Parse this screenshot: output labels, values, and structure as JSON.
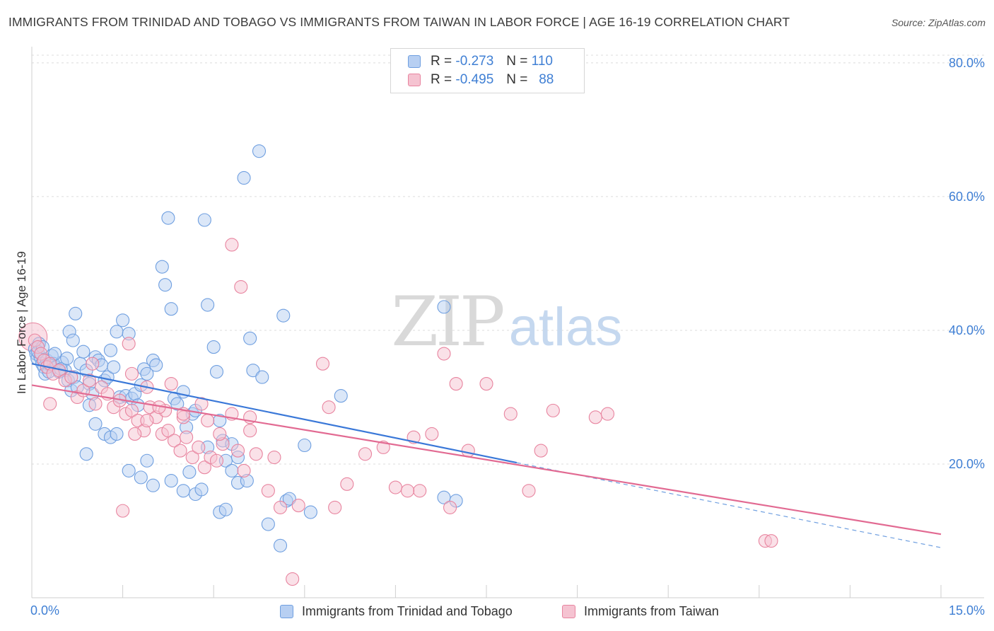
{
  "title": "IMMIGRANTS FROM TRINIDAD AND TOBAGO VS IMMIGRANTS FROM TAIWAN IN LABOR FORCE | AGE 16-19 CORRELATION CHART",
  "source": "Source: ZipAtlas.com",
  "watermark": {
    "zip": "ZIP",
    "atlas": "atlas"
  },
  "legend": {
    "rows": [
      {
        "r_label": "R =",
        "r_value": "-0.273",
        "n_label": "N =",
        "n_value": "110"
      },
      {
        "r_label": "R =",
        "r_value": "-0.495",
        "n_label": "N =",
        "n_value": "88"
      }
    ]
  },
  "chart_data": {
    "type": "scatter",
    "title": "IMMIGRANTS FROM TRINIDAD AND TOBAGO VS IMMIGRANTS FROM TAIWAN IN LABOR FORCE | AGE 16-19 CORRELATION CHART",
    "xlabel": "",
    "ylabel": "In Labor Force | Age 16-19",
    "xlim": [
      0,
      15
    ],
    "ylim": [
      0,
      82
    ],
    "x_tick_labels": [
      "0.0%",
      "15.0%"
    ],
    "y_ticks": [
      20,
      40,
      60,
      80
    ],
    "y_tick_labels": [
      "20.0%",
      "40.0%",
      "60.0%",
      "80.0%"
    ],
    "grid": true,
    "legend_position": "top-center",
    "series": [
      {
        "name": "Immigrants from Trinidad and Tobago",
        "color": "#6f9fe0",
        "fill": "#b7cff2",
        "R": -0.273,
        "N": 110,
        "trend": {
          "x0": 0,
          "y0": 35.0,
          "x1": 8.0,
          "y1": 20.2,
          "dash_to_x": 15,
          "dash_to_y": 7.5
        },
        "points": [
          [
            0.05,
            37.2
          ],
          [
            0.07,
            36.5
          ],
          [
            0.09,
            35.8
          ],
          [
            0.12,
            38.0
          ],
          [
            0.14,
            36.0
          ],
          [
            0.17,
            35.0
          ],
          [
            0.2,
            34.5
          ],
          [
            0.22,
            33.5
          ],
          [
            0.25,
            35.5
          ],
          [
            0.3,
            34.8
          ],
          [
            0.33,
            36.2
          ],
          [
            0.36,
            35.0
          ],
          [
            0.4,
            34.5
          ],
          [
            0.45,
            33.8
          ],
          [
            0.5,
            35.2
          ],
          [
            0.55,
            34.0
          ],
          [
            0.6,
            32.5
          ],
          [
            0.65,
            31.0
          ],
          [
            0.7,
            33.0
          ],
          [
            0.75,
            31.5
          ],
          [
            0.8,
            35.0
          ],
          [
            0.85,
            36.8
          ],
          [
            0.9,
            34.0
          ],
          [
            0.95,
            32.0
          ],
          [
            1.0,
            30.5
          ],
          [
            1.05,
            36.0
          ],
          [
            1.1,
            35.5
          ],
          [
            1.15,
            34.8
          ],
          [
            1.2,
            32.5
          ],
          [
            1.25,
            33.0
          ],
          [
            0.72,
            42.5
          ],
          [
            0.62,
            39.8
          ],
          [
            0.68,
            38.5
          ],
          [
            1.5,
            41.5
          ],
          [
            1.4,
            39.8
          ],
          [
            1.6,
            39.5
          ],
          [
            1.3,
            37.0
          ],
          [
            1.35,
            34.5
          ],
          [
            1.45,
            30.0
          ],
          [
            1.55,
            30.2
          ],
          [
            1.65,
            29.8
          ],
          [
            1.7,
            30.5
          ],
          [
            1.8,
            31.8
          ],
          [
            1.85,
            34.2
          ],
          [
            1.9,
            33.5
          ],
          [
            2.0,
            35.5
          ],
          [
            2.05,
            34.8
          ],
          [
            2.15,
            49.5
          ],
          [
            2.2,
            46.8
          ],
          [
            2.25,
            56.8
          ],
          [
            2.3,
            43.2
          ],
          [
            2.35,
            29.8
          ],
          [
            2.4,
            29.0
          ],
          [
            2.5,
            30.8
          ],
          [
            2.55,
            25.5
          ],
          [
            2.65,
            27.5
          ],
          [
            2.7,
            28.0
          ],
          [
            2.85,
            56.5
          ],
          [
            2.9,
            43.8
          ],
          [
            3.0,
            37.5
          ],
          [
            3.05,
            33.8
          ],
          [
            3.1,
            26.5
          ],
          [
            3.15,
            23.5
          ],
          [
            3.2,
            20.5
          ],
          [
            3.3,
            23.0
          ],
          [
            3.4,
            17.2
          ],
          [
            3.5,
            62.8
          ],
          [
            3.6,
            38.8
          ],
          [
            3.65,
            34.0
          ],
          [
            3.75,
            66.8
          ],
          [
            3.8,
            33.0
          ],
          [
            4.15,
            42.2
          ],
          [
            4.2,
            14.5
          ],
          [
            4.25,
            14.8
          ],
          [
            4.5,
            22.8
          ],
          [
            4.6,
            12.8
          ],
          [
            5.1,
            30.2
          ],
          [
            6.8,
            43.5
          ],
          [
            6.8,
            15.0
          ],
          [
            7.0,
            14.5
          ],
          [
            0.9,
            21.5
          ],
          [
            1.2,
            24.5
          ],
          [
            1.3,
            24.0
          ],
          [
            1.4,
            24.5
          ],
          [
            1.6,
            19.0
          ],
          [
            1.8,
            18.0
          ],
          [
            1.9,
            20.5
          ],
          [
            2.0,
            16.8
          ],
          [
            2.3,
            17.5
          ],
          [
            2.5,
            16.0
          ],
          [
            2.6,
            18.8
          ],
          [
            2.7,
            15.5
          ],
          [
            2.8,
            16.2
          ],
          [
            2.9,
            22.5
          ],
          [
            3.1,
            12.8
          ],
          [
            3.2,
            13.2
          ],
          [
            3.3,
            19.0
          ],
          [
            3.4,
            21.0
          ],
          [
            3.55,
            17.5
          ],
          [
            3.9,
            11.0
          ],
          [
            4.1,
            7.8
          ],
          [
            0.1,
            36.8
          ],
          [
            0.18,
            37.5
          ],
          [
            0.28,
            33.8
          ],
          [
            0.38,
            36.5
          ],
          [
            0.48,
            34.2
          ],
          [
            0.58,
            35.8
          ],
          [
            0.95,
            28.8
          ],
          [
            1.05,
            26.0
          ],
          [
            1.75,
            28.8
          ]
        ]
      },
      {
        "name": "Immigrants from Taiwan",
        "color": "#e8849f",
        "fill": "#f5c3d1",
        "R": -0.495,
        "N": 88,
        "trend": {
          "x0": 0,
          "y0": 31.8,
          "x1": 15,
          "y1": 9.5
        },
        "points": [
          [
            0.05,
            38.5
          ],
          [
            0.1,
            37.5
          ],
          [
            0.15,
            36.5
          ],
          [
            0.2,
            35.5
          ],
          [
            0.25,
            34.5
          ],
          [
            0.3,
            35.0
          ],
          [
            0.35,
            33.5
          ],
          [
            0.45,
            34.0
          ],
          [
            0.55,
            32.5
          ],
          [
            0.65,
            33.0
          ],
          [
            0.75,
            30.0
          ],
          [
            0.85,
            31.0
          ],
          [
            0.95,
            32.5
          ],
          [
            1.05,
            29.0
          ],
          [
            1.15,
            31.5
          ],
          [
            1.25,
            30.5
          ],
          [
            1.35,
            28.5
          ],
          [
            1.45,
            29.5
          ],
          [
            1.55,
            27.5
          ],
          [
            1.65,
            28.0
          ],
          [
            1.75,
            26.5
          ],
          [
            1.85,
            25.0
          ],
          [
            1.95,
            28.5
          ],
          [
            2.05,
            27.0
          ],
          [
            2.15,
            24.5
          ],
          [
            2.25,
            25.0
          ],
          [
            2.35,
            23.5
          ],
          [
            2.45,
            22.0
          ],
          [
            2.55,
            24.0
          ],
          [
            2.65,
            21.0
          ],
          [
            2.75,
            22.5
          ],
          [
            2.85,
            19.5
          ],
          [
            2.95,
            21.0
          ],
          [
            3.05,
            20.5
          ],
          [
            3.15,
            23.0
          ],
          [
            3.3,
            27.5
          ],
          [
            3.4,
            22.0
          ],
          [
            3.5,
            19.0
          ],
          [
            3.6,
            27.0
          ],
          [
            3.7,
            21.5
          ],
          [
            3.3,
            52.8
          ],
          [
            3.45,
            46.5
          ],
          [
            1.6,
            38.0
          ],
          [
            1.65,
            33.5
          ],
          [
            4.8,
            35.0
          ],
          [
            4.9,
            28.5
          ],
          [
            5.2,
            17.0
          ],
          [
            5.5,
            21.5
          ],
          [
            5.8,
            22.5
          ],
          [
            6.3,
            24.0
          ],
          [
            6.4,
            16.0
          ],
          [
            6.6,
            24.5
          ],
          [
            6.8,
            36.5
          ],
          [
            7.0,
            32.0
          ],
          [
            7.2,
            22.0
          ],
          [
            7.5,
            32.0
          ],
          [
            7.9,
            27.5
          ],
          [
            8.2,
            16.0
          ],
          [
            8.4,
            22.0
          ],
          [
            8.6,
            28.0
          ],
          [
            9.3,
            27.0
          ],
          [
            9.5,
            27.5
          ],
          [
            12.1,
            8.5
          ],
          [
            12.2,
            8.5
          ],
          [
            0.3,
            29.0
          ],
          [
            1.0,
            35.0
          ],
          [
            1.9,
            31.5
          ],
          [
            2.2,
            28.0
          ],
          [
            2.5,
            27.0
          ],
          [
            2.9,
            26.5
          ],
          [
            3.1,
            24.5
          ],
          [
            3.9,
            16.0
          ],
          [
            4.1,
            13.5
          ],
          [
            4.4,
            13.8
          ],
          [
            5.0,
            13.5
          ],
          [
            6.0,
            16.5
          ],
          [
            6.2,
            16.0
          ],
          [
            6.9,
            13.5
          ],
          [
            4.3,
            2.8
          ],
          [
            1.5,
            13.0
          ],
          [
            1.7,
            24.5
          ],
          [
            1.9,
            26.5
          ],
          [
            2.1,
            28.5
          ],
          [
            2.3,
            32.0
          ],
          [
            2.5,
            27.5
          ],
          [
            2.8,
            29.0
          ],
          [
            3.6,
            25.0
          ],
          [
            4.0,
            21.0
          ]
        ]
      }
    ],
    "bubbles": [
      {
        "series": "Immigrants from Taiwan",
        "x": 0.02,
        "y": 39.0,
        "size": "large"
      }
    ]
  },
  "bottom_legend": [
    {
      "label": "Immigrants from Trinidad and Tobago"
    },
    {
      "label": "Immigrants from Taiwan"
    }
  ]
}
